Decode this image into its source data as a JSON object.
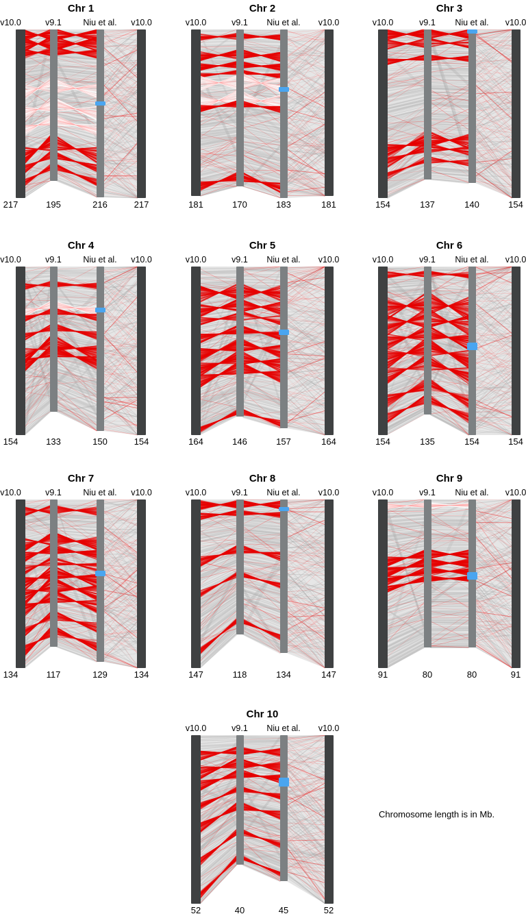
{
  "note": "Chromosome length is in Mb.",
  "colors": {
    "background": "#ffffff",
    "bar_dark": "#3f4142",
    "bar_mid": "#7c8082",
    "marker_blue": "#4aa5f0",
    "ribbon_gray": "#bdbdbd",
    "ribbon_red": "#e60000"
  },
  "chart_data": {
    "type": "parallel-synteny-ribbon-plot",
    "unit": "Mb",
    "column_labels": [
      "v10.0",
      "v9.1",
      "Niu et al.",
      "v10.0"
    ],
    "panels": [
      {
        "title": "Chr 1",
        "labels": [
          "v10.0",
          "v9.1",
          "Niu et al.",
          "v10.0"
        ],
        "lengths_mb": [
          217,
          195,
          216,
          217
        ],
        "marker": {
          "pos": 0.43,
          "h": 6
        },
        "crossbands": 3,
        "inversion_bands": [
          [
            0.035,
            0.035,
            1
          ],
          [
            0.09,
            0.045,
            1
          ],
          [
            0.145,
            0.03,
            0.7
          ],
          [
            0.37,
            0.045,
            0.2
          ],
          [
            0.5,
            0.04,
            0.15
          ],
          [
            0.6,
            0.035,
            0.15
          ],
          [
            0.75,
            0.05,
            1
          ],
          [
            0.83,
            0.025,
            0.6
          ],
          [
            0.91,
            0.02,
            0.5
          ]
        ]
      },
      {
        "title": "Chr 2",
        "labels": [
          "v10.0",
          "v9.1",
          "Niu et al.",
          "v10.0"
        ],
        "lengths_mb": [
          181,
          170,
          183,
          181
        ],
        "marker": {
          "pos": 0.34,
          "h": 7
        },
        "crossbands": 5,
        "inversion_bands": [
          [
            0.045,
            0.02,
            0.6
          ],
          [
            0.16,
            0.03,
            0.9
          ],
          [
            0.225,
            0.02,
            0.8
          ],
          [
            0.275,
            0.015,
            0.6
          ],
          [
            0.33,
            0.05,
            0.2
          ],
          [
            0.44,
            0.05,
            0.2
          ],
          [
            0.475,
            0.02,
            0.8
          ],
          [
            0.94,
            0.03,
            0.8
          ]
        ]
      },
      {
        "title": "Chr 3",
        "labels": [
          "v10.0",
          "v9.1",
          "Niu et al.",
          "v10.0"
        ],
        "lengths_mb": [
          154,
          137,
          140,
          154
        ],
        "marker": {
          "pos": 0.0,
          "h": 6
        },
        "crossbands": 3,
        "inversion_bands": [
          [
            0.03,
            0.03,
            0.9
          ],
          [
            0.09,
            0.03,
            0.6
          ],
          [
            0.19,
            0.02,
            0.6
          ],
          [
            0.73,
            0.05,
            1
          ],
          [
            0.79,
            0.03,
            0.6
          ],
          [
            0.87,
            0.02,
            0.4
          ]
        ]
      },
      {
        "title": "Chr 4",
        "labels": [
          "v10.0",
          "v9.1",
          "Niu et al.",
          "v10.0"
        ],
        "lengths_mb": [
          154,
          133,
          150,
          154
        ],
        "marker": {
          "pos": 0.25,
          "h": 7
        },
        "crossbands": 12,
        "inversion_bands": [
          [
            0.12,
            0.02,
            0.5
          ],
          [
            0.27,
            0.03,
            0.3
          ],
          [
            0.31,
            0.02,
            0.5
          ],
          [
            0.42,
            0.025,
            0.6
          ],
          [
            0.53,
            0.05,
            1
          ],
          [
            0.585,
            0.04,
            0.9
          ]
        ]
      },
      {
        "title": "Chr 5",
        "labels": [
          "v10.0",
          "v9.1",
          "Niu et al.",
          "v10.0"
        ],
        "lengths_mb": [
          164,
          146,
          157,
          164
        ],
        "marker": {
          "pos": 0.39,
          "h": 8
        },
        "crossbands": 9,
        "inversion_bands": [
          [
            0.165,
            0.05,
            1
          ],
          [
            0.26,
            0.04,
            0.9
          ],
          [
            0.33,
            0.03,
            0.4
          ],
          [
            0.425,
            0.03,
            0.8
          ],
          [
            0.525,
            0.04,
            1
          ],
          [
            0.61,
            0.04,
            1
          ],
          [
            0.68,
            0.04,
            0.9
          ],
          [
            0.97,
            0.02,
            0.5
          ]
        ]
      },
      {
        "title": "Chr 6",
        "labels": [
          "v10.0",
          "v9.1",
          "Niu et al.",
          "v10.0"
        ],
        "lengths_mb": [
          154,
          135,
          154,
          154
        ],
        "marker": {
          "pos": 0.45,
          "h": 11
        },
        "crossbands": 14,
        "inversion_bands": [
          [
            0.05,
            0.02,
            0.5
          ],
          [
            0.25,
            0.07,
            1
          ],
          [
            0.35,
            0.06,
            1
          ],
          [
            0.45,
            0.05,
            0.9
          ],
          [
            0.55,
            0.06,
            1
          ],
          [
            0.65,
            0.05,
            0.8
          ],
          [
            0.8,
            0.04,
            0.7
          ],
          [
            0.9,
            0.03,
            0.6
          ]
        ]
      },
      {
        "title": "Chr 7",
        "labels": [
          "v10.0",
          "v9.1",
          "Niu et al.",
          "v10.0"
        ],
        "lengths_mb": [
          134,
          117,
          129,
          134
        ],
        "marker": {
          "pos": 0.44,
          "h": 8
        },
        "crossbands": 9,
        "inversion_bands": [
          [
            0.07,
            0.03,
            0.6
          ],
          [
            0.27,
            0.04,
            0.9
          ],
          [
            0.34,
            0.03,
            0.8
          ],
          [
            0.42,
            0.03,
            0.5
          ],
          [
            0.5,
            0.04,
            1
          ],
          [
            0.58,
            0.05,
            1
          ],
          [
            0.66,
            0.04,
            0.9
          ],
          [
            0.79,
            0.03,
            0.6
          ],
          [
            0.9,
            0.035,
            0.7
          ]
        ]
      },
      {
        "title": "Chr 8",
        "labels": [
          "v10.0",
          "v9.1",
          "Niu et al.",
          "v10.0"
        ],
        "lengths_mb": [
          147,
          118,
          134,
          147
        ],
        "marker": {
          "pos": 0.05,
          "h": 6
        },
        "crossbands": 3,
        "inversion_bands": [
          [
            0.035,
            0.03,
            0.9
          ],
          [
            0.1,
            0.02,
            0.6
          ],
          [
            0.37,
            0.03,
            0.7
          ],
          [
            0.56,
            0.02,
            0.4
          ],
          [
            0.9,
            0.02,
            0.4
          ]
        ]
      },
      {
        "title": "Chr 9",
        "labels": [
          "v10.0",
          "v9.1",
          "Niu et al.",
          "v10.0"
        ],
        "lengths_mb": [
          91,
          80,
          80,
          91
        ],
        "marker": {
          "pos": 0.49,
          "h": 11
        },
        "crossbands": 5,
        "inversion_bands": [
          [
            0.04,
            0.015,
            0.3
          ],
          [
            0.37,
            0.03,
            0.9
          ],
          [
            0.43,
            0.03,
            0.9
          ],
          [
            0.485,
            0.03,
            0.8
          ],
          [
            0.535,
            0.02,
            0.7
          ]
        ]
      },
      {
        "title": "Chr 10",
        "labels": [
          "v10.0",
          "v9.1",
          "Niu et al.",
          "v10.0"
        ],
        "lengths_mb": [
          52,
          40,
          45,
          52
        ],
        "marker": {
          "pos": 0.29,
          "h": 13
        },
        "crossbands": 7,
        "inversion_bands": [
          [
            0.12,
            0.03,
            0.8
          ],
          [
            0.22,
            0.04,
            0.9
          ],
          [
            0.3,
            0.03,
            0.8
          ],
          [
            0.42,
            0.02,
            0.6
          ],
          [
            0.55,
            0.03,
            0.7
          ],
          [
            0.75,
            0.025,
            0.5
          ],
          [
            0.95,
            0.02,
            0.5
          ]
        ]
      }
    ]
  }
}
